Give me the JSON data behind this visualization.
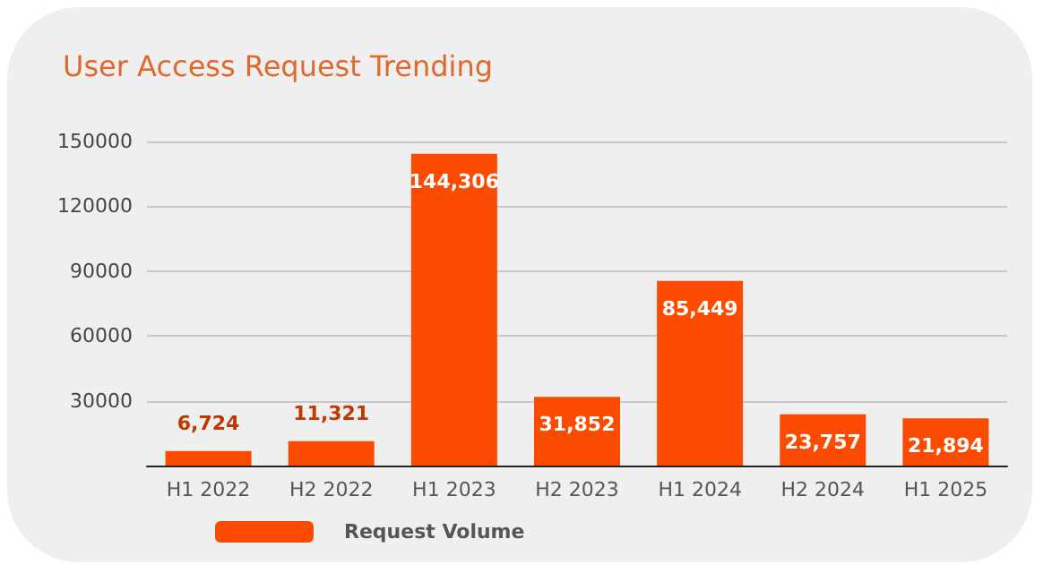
{
  "chart_data": {
    "type": "bar",
    "title": "User Access Request Trending",
    "categories": [
      "H1 2022",
      "H2 2022",
      "H1 2023",
      "H2 2023",
      "H1 2024",
      "H2 2024",
      "H1 2025"
    ],
    "series": [
      {
        "name": "Request Volume",
        "color": "#fb4b00",
        "values": [
          6724,
          11321,
          144306,
          31852,
          85449,
          23757,
          21894
        ]
      }
    ],
    "value_labels": [
      "6,724",
      "11,321",
      "144,306",
      "31,852",
      "85,449",
      "23,757",
      "21,894"
    ],
    "ylim": [
      0,
      150000
    ],
    "yticks": [
      30000,
      60000,
      90000,
      120000,
      150000
    ],
    "grid": "y",
    "legend": "bottom left"
  }
}
